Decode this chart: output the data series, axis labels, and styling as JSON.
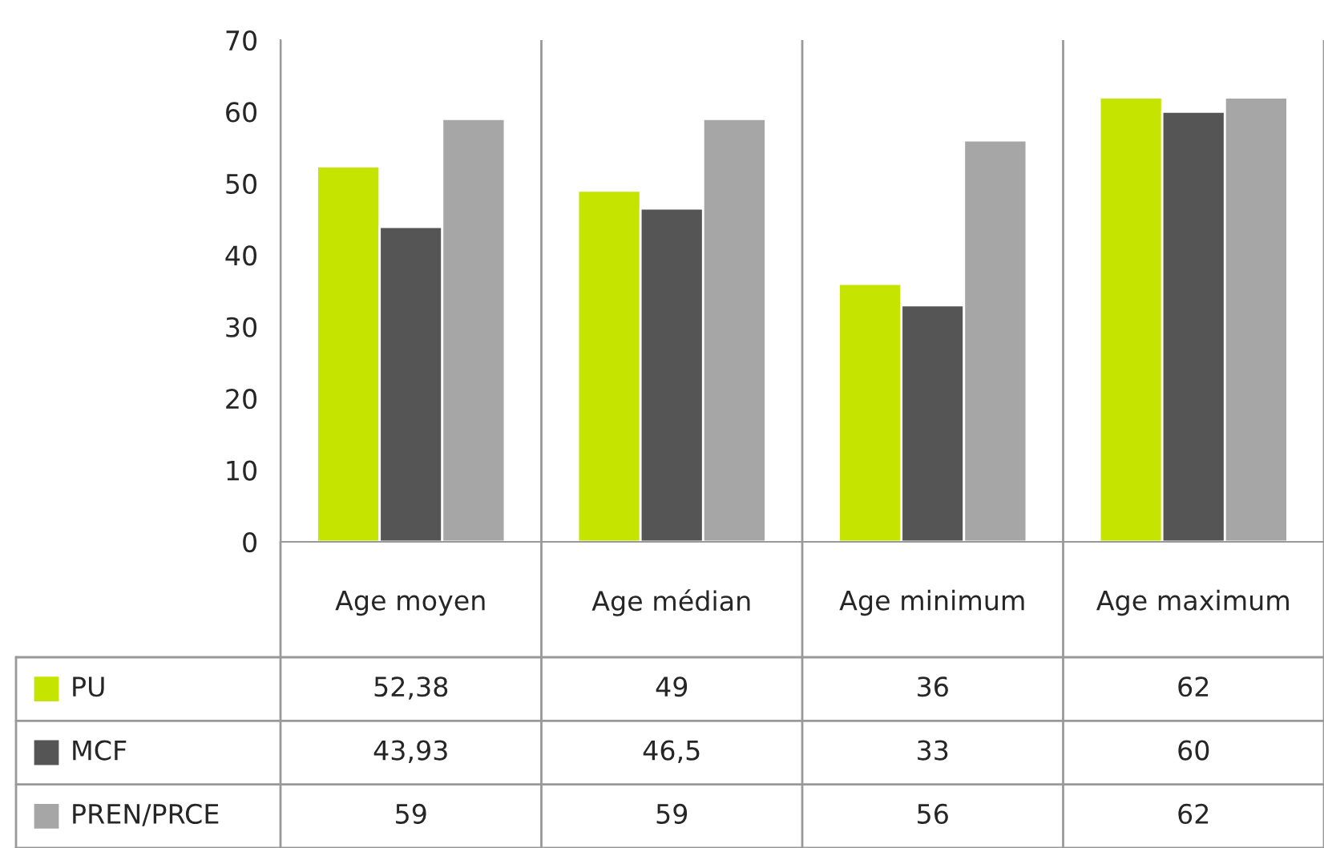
{
  "chart_data": {
    "type": "bar",
    "categories": [
      "Age moyen",
      "Age médian",
      "Age minimum",
      "Age maximum"
    ],
    "series": [
      {
        "name": "PU",
        "color": "#c5e400",
        "values": [
          52.38,
          49,
          36,
          62
        ],
        "value_labels": [
          "52,38",
          "49",
          "36",
          "62"
        ]
      },
      {
        "name": "MCF",
        "color": "#555555",
        "values": [
          43.93,
          46.5,
          33,
          60
        ],
        "value_labels": [
          "43,93",
          "46,5",
          "33",
          "60"
        ]
      },
      {
        "name": "PREN/PRCE",
        "color": "#a6a6a6",
        "values": [
          59,
          59,
          56,
          62
        ],
        "value_labels": [
          "59",
          "59",
          "56",
          "62"
        ]
      }
    ],
    "ylim": [
      0,
      70
    ],
    "yticks": [
      0,
      10,
      20,
      30,
      40,
      50,
      60,
      70
    ],
    "grid": "x",
    "legend": "bottom"
  }
}
